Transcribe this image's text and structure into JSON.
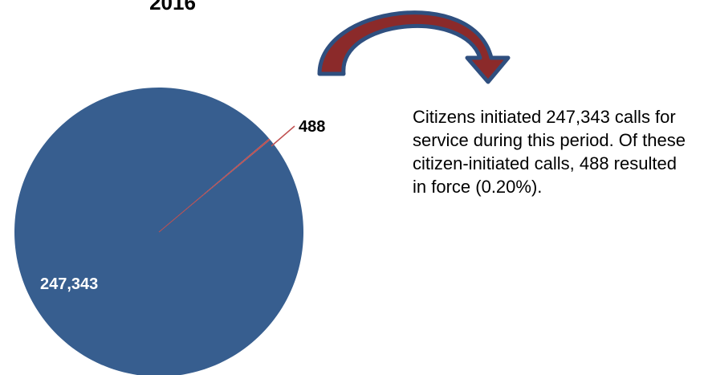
{
  "chart_data": {
    "type": "pie",
    "title": "2016",
    "slices": [
      {
        "label": "247,343",
        "value": 247343,
        "color": "#375e8f"
      },
      {
        "label": "488",
        "value": 488,
        "color": "#c05050"
      }
    ]
  },
  "note": {
    "text": "Citizens initiated 247,343 calls for service during this period. Of these citizen-initiated calls, 488 resulted in force (0.20%)."
  },
  "colors": {
    "pie_main": "#375e8f",
    "pie_small": "#c05050",
    "arrow_fill": "#8b2a2a",
    "arrow_outline": "#2f4f7f"
  }
}
